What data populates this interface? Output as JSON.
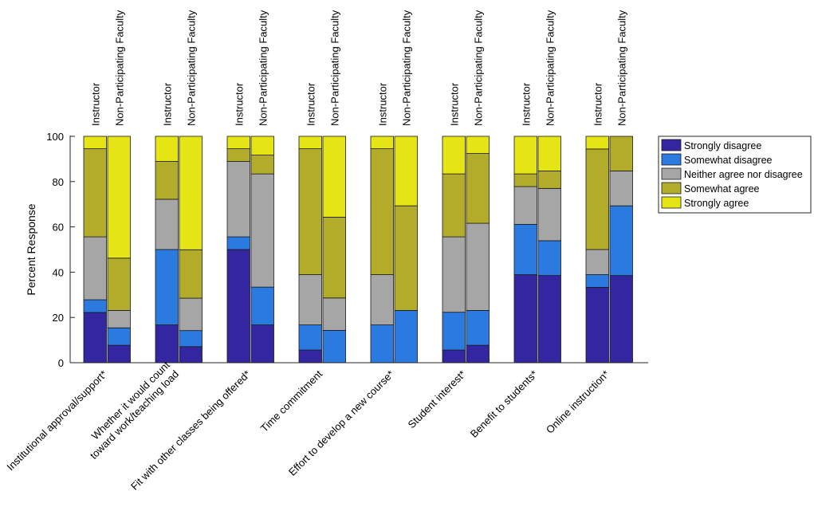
{
  "chart_data": {
    "type": "bar",
    "stacked": true,
    "ylabel": "Percent Response",
    "ylim": [
      0,
      100
    ],
    "yticks": [
      0,
      20,
      40,
      60,
      80,
      100
    ],
    "grid": false,
    "legend_position": "top-right-outside",
    "bar_labels": [
      "Instructor",
      "Non-Participating Faculty"
    ],
    "categories": [
      "Institutional approval/support*",
      "Whether it would count toward work/teaching load",
      "Fit with other classes being offered*",
      "Time commitment",
      "Effort to develop a new course*",
      "Student interest*",
      "Benefit to students*",
      "Online instruction*"
    ],
    "category_lines": [
      [
        "Institutional approval/support*"
      ],
      [
        "Whether it would count",
        "toward work/teaching load"
      ],
      [
        "Fit with other classes being offered*"
      ],
      [
        "Time commitment"
      ],
      [
        "Effort to develop a new course*"
      ],
      [
        "Student interest*"
      ],
      [
        "Benefit to students*"
      ],
      [
        "Online instruction*"
      ]
    ],
    "series": [
      {
        "name": "Strongly disagree",
        "color": "#3426a0",
        "instructor": [
          22.2,
          16.7,
          50.0,
          5.6,
          0.0,
          5.6,
          38.9,
          33.3
        ],
        "non_participating": [
          7.7,
          7.1,
          16.7,
          0.0,
          0.0,
          7.7,
          38.5,
          38.5
        ]
      },
      {
        "name": "Somewhat disagree",
        "color": "#2a7ae0",
        "instructor": [
          5.6,
          33.3,
          5.6,
          11.1,
          16.7,
          16.7,
          22.2,
          5.6
        ],
        "non_participating": [
          7.7,
          7.1,
          16.7,
          14.3,
          23.1,
          15.4,
          15.4,
          30.8
        ]
      },
      {
        "name": "Neither agree nor disagree",
        "color": "#a6a6a6",
        "instructor": [
          27.8,
          22.2,
          33.3,
          22.2,
          22.2,
          33.3,
          16.7,
          11.1
        ],
        "non_participating": [
          7.7,
          14.3,
          50.0,
          14.3,
          0.0,
          38.5,
          23.1,
          15.4
        ]
      },
      {
        "name": "Somewhat agree",
        "color": "#b3ac2a",
        "instructor": [
          38.9,
          16.7,
          5.6,
          55.6,
          55.6,
          27.8,
          5.6,
          44.4
        ],
        "non_participating": [
          23.1,
          21.4,
          8.3,
          35.7,
          46.2,
          30.8,
          7.7,
          15.3
        ]
      },
      {
        "name": "Strongly agree",
        "color": "#e5e516",
        "instructor": [
          5.5,
          11.1,
          5.5,
          5.5,
          5.5,
          16.6,
          16.6,
          5.6
        ],
        "non_participating": [
          53.8,
          50.1,
          8.3,
          35.7,
          30.7,
          7.6,
          15.3,
          0.0
        ]
      }
    ]
  }
}
